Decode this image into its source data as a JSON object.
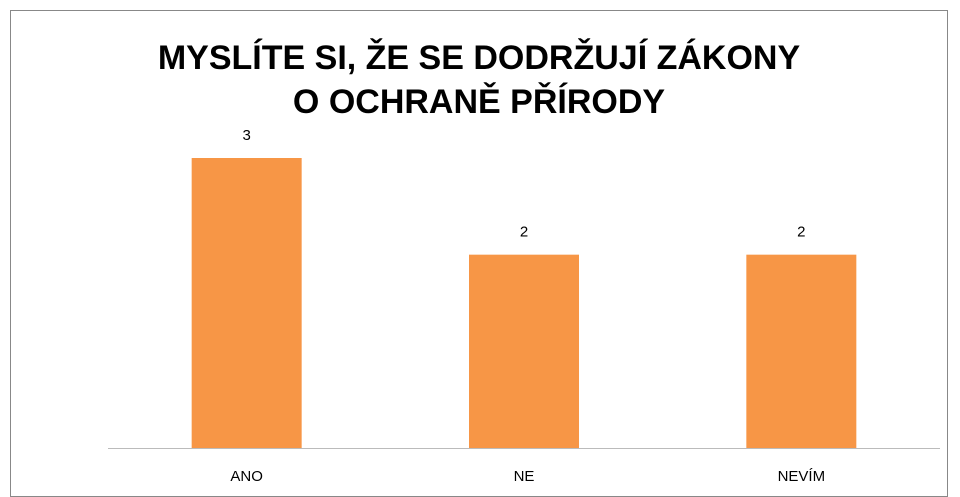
{
  "chart_data": {
    "type": "bar",
    "title": "MYSLÍTE SI, ŽE SE DODRŽUJÍ ZÁKONY\nO OCHRANĚ PŘÍRODY",
    "categories": [
      "ANO",
      "NE",
      "NEVÍM"
    ],
    "values": [
      3,
      2,
      2
    ],
    "color": "#f79646"
  }
}
